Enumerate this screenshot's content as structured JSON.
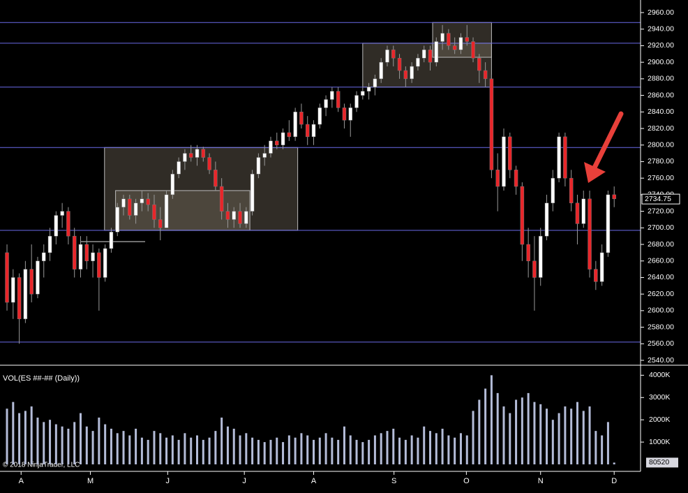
{
  "chart_data": {
    "type": "candlestick",
    "copyright": "© 2018 NinjaTrader, LLC",
    "volume_title": "VOL(ES ##-## (Daily))",
    "last_price": 2734.75,
    "last_price_label": "2734.75",
    "last_volume_label": "80520",
    "up_color": "#ffffff",
    "down_color": "#e8262a",
    "volume_color": "#b4bcd8",
    "open": [
      2670,
      2610,
      2640,
      2590,
      2650,
      2620,
      2660,
      2670,
      2690,
      2715,
      2720,
      2690,
      2650,
      2680,
      2660,
      2670,
      2640,
      2675,
      2695,
      2725,
      2735,
      2715,
      2730,
      2735,
      2728,
      2710,
      2700,
      2740,
      2765,
      2780,
      2790,
      2785,
      2795,
      2785,
      2770,
      2750,
      2720,
      2710,
      2720,
      2705,
      2720,
      2765,
      2785,
      2790,
      2805,
      2800,
      2815,
      2810,
      2840,
      2825,
      2810,
      2825,
      2845,
      2855,
      2865,
      2845,
      2830,
      2845,
      2860,
      2865,
      2870,
      2880,
      2900,
      2915,
      2905,
      2890,
      2880,
      2895,
      2905,
      2915,
      2900,
      2925,
      2935,
      2920,
      2915,
      2930,
      2925,
      2905,
      2890,
      2880,
      2770,
      2750,
      2810,
      2770,
      2750,
      2680,
      2660,
      2640,
      2690,
      2730,
      2760,
      2810,
      2760,
      2730,
      2705,
      2735,
      2650,
      2635,
      2670,
      2740
    ],
    "high": [
      2680,
      2650,
      2645,
      2660,
      2680,
      2665,
      2680,
      2700,
      2720,
      2730,
      2725,
      2700,
      2690,
      2690,
      2680,
      2675,
      2680,
      2700,
      2730,
      2740,
      2740,
      2735,
      2745,
      2742,
      2740,
      2725,
      2745,
      2770,
      2785,
      2795,
      2800,
      2800,
      2798,
      2790,
      2780,
      2760,
      2730,
      2725,
      2730,
      2725,
      2770,
      2790,
      2800,
      2810,
      2815,
      2820,
      2830,
      2845,
      2850,
      2835,
      2830,
      2850,
      2860,
      2870,
      2870,
      2850,
      2850,
      2865,
      2870,
      2875,
      2885,
      2905,
      2920,
      2920,
      2910,
      2895,
      2900,
      2910,
      2920,
      2920,
      2930,
      2945,
      2940,
      2930,
      2935,
      2945,
      2930,
      2910,
      2900,
      2885,
      2790,
      2820,
      2815,
      2775,
      2755,
      2700,
      2690,
      2700,
      2740,
      2770,
      2815,
      2815,
      2770,
      2740,
      2745,
      2745,
      2660,
      2680,
      2745,
      2750
    ],
    "low": [
      2600,
      2590,
      2560,
      2585,
      2610,
      2615,
      2640,
      2660,
      2680,
      2700,
      2680,
      2640,
      2640,
      2650,
      2640,
      2600,
      2635,
      2670,
      2690,
      2715,
      2710,
      2705,
      2720,
      2720,
      2700,
      2685,
      2700,
      2735,
      2760,
      2770,
      2780,
      2775,
      2780,
      2765,
      2745,
      2710,
      2700,
      2700,
      2700,
      2700,
      2715,
      2760,
      2775,
      2785,
      2795,
      2795,
      2805,
      2805,
      2820,
      2800,
      2800,
      2820,
      2835,
      2845,
      2840,
      2820,
      2810,
      2840,
      2855,
      2855,
      2860,
      2875,
      2895,
      2895,
      2880,
      2870,
      2875,
      2890,
      2900,
      2890,
      2895,
      2915,
      2915,
      2910,
      2910,
      2920,
      2900,
      2875,
      2870,
      2760,
      2720,
      2745,
      2760,
      2740,
      2660,
      2640,
      2600,
      2630,
      2685,
      2720,
      2755,
      2750,
      2720,
      2680,
      2700,
      2640,
      2625,
      2630,
      2665,
      2725
    ],
    "close": [
      2610,
      2640,
      2590,
      2650,
      2620,
      2660,
      2670,
      2690,
      2715,
      2720,
      2690,
      2650,
      2680,
      2660,
      2670,
      2640,
      2675,
      2695,
      2725,
      2735,
      2715,
      2730,
      2735,
      2728,
      2710,
      2700,
      2740,
      2765,
      2780,
      2790,
      2785,
      2795,
      2785,
      2770,
      2750,
      2720,
      2710,
      2720,
      2705,
      2720,
      2765,
      2785,
      2790,
      2805,
      2800,
      2815,
      2810,
      2840,
      2825,
      2810,
      2825,
      2845,
      2855,
      2865,
      2845,
      2830,
      2845,
      2860,
      2865,
      2870,
      2880,
      2900,
      2915,
      2905,
      2890,
      2880,
      2895,
      2905,
      2915,
      2900,
      2925,
      2935,
      2920,
      2915,
      2930,
      2925,
      2905,
      2890,
      2880,
      2770,
      2750,
      2810,
      2770,
      2750,
      2680,
      2660,
      2640,
      2690,
      2730,
      2760,
      2810,
      2760,
      2730,
      2705,
      2735,
      2650,
      2635,
      2670,
      2740,
      2735
    ],
    "volume": [
      2500000,
      2800000,
      2300000,
      2400000,
      2600000,
      2100000,
      1900000,
      2000000,
      1800000,
      1700000,
      1600000,
      1900000,
      2300000,
      1700000,
      1500000,
      2100000,
      1800000,
      1600000,
      1400000,
      1500000,
      1300000,
      1600000,
      1200000,
      1100000,
      1500000,
      1400000,
      1200000,
      1300000,
      1100000,
      1400000,
      1200000,
      1300000,
      1100000,
      1200000,
      1500000,
      2100000,
      1700000,
      1600000,
      1300000,
      1400000,
      1200000,
      1100000,
      1000000,
      1100000,
      1200000,
      1000000,
      1300000,
      1200000,
      1400000,
      1300000,
      1100000,
      1200000,
      1400000,
      1200000,
      1100000,
      1700000,
      1300000,
      1100000,
      1000000,
      1100000,
      1300000,
      1400000,
      1500000,
      1600000,
      1200000,
      1100000,
      1300000,
      1200000,
      1700000,
      1500000,
      1400000,
      1600000,
      1300000,
      1200000,
      1400000,
      1300000,
      2400000,
      2900000,
      3400000,
      4000000,
      3200000,
      2600000,
      2300000,
      2900000,
      3000000,
      3200000,
      2800000,
      2700000,
      2500000,
      2000000,
      2300000,
      2600000,
      2500000,
      2800000,
      2400000,
      2600000,
      1500000,
      1300000,
      1900000,
      80520
    ],
    "xlim": [
      -1.14,
      103.3
    ],
    "ylim": [
      2540,
      2960
    ],
    "vlim": [
      0,
      4450000
    ],
    "xticks": [
      {
        "value": 2.3,
        "label": "A"
      },
      {
        "value": 13.6,
        "label": "M"
      },
      {
        "value": 26.2,
        "label": "J"
      },
      {
        "value": 38.7,
        "label": "J"
      },
      {
        "value": 50,
        "label": "A"
      },
      {
        "value": 63.1,
        "label": "S"
      },
      {
        "value": 74.9,
        "label": "O"
      },
      {
        "value": 87,
        "label": "N"
      },
      {
        "value": 99,
        "label": "D"
      }
    ],
    "yticks": [
      {
        "value": 2540,
        "label": "2540.00"
      },
      {
        "value": 2560,
        "label": "2560.00"
      },
      {
        "value": 2580,
        "label": "2580.00"
      },
      {
        "value": 2600,
        "label": "2600.00"
      },
      {
        "value": 2620,
        "label": "2620.00"
      },
      {
        "value": 2640,
        "label": "2640.00"
      },
      {
        "value": 2660,
        "label": "2660.00"
      },
      {
        "value": 2680,
        "label": "2680.00"
      },
      {
        "value": 2700,
        "label": "2700.00"
      },
      {
        "value": 2720,
        "label": "2720.00"
      },
      {
        "value": 2740,
        "label": "2740.00"
      },
      {
        "value": 2760,
        "label": "2760.00"
      },
      {
        "value": 2780,
        "label": "2780.00"
      },
      {
        "value": 2800,
        "label": "2800.00"
      },
      {
        "value": 2820,
        "label": "2820.00"
      },
      {
        "value": 2840,
        "label": "2840.00"
      },
      {
        "value": 2860,
        "label": "2860.00"
      },
      {
        "value": 2880,
        "label": "2880.00"
      },
      {
        "value": 2900,
        "label": "2900.00"
      },
      {
        "value": 2920,
        "label": "2920.00"
      },
      {
        "value": 2940,
        "label": "2940.00"
      },
      {
        "value": 2960,
        "label": "2960.00"
      }
    ],
    "vticks": [
      {
        "value": 1000000,
        "label": "1000K"
      },
      {
        "value": 2000000,
        "label": "2000K"
      },
      {
        "value": 3000000,
        "label": "3000K"
      },
      {
        "value": 4000000,
        "label": "4000K"
      }
    ],
    "levels": [
      2948,
      2923,
      2870,
      2797,
      2697,
      2562
    ],
    "level_color": "#6a6ae8",
    "zones": [
      {
        "x0": 15.9,
        "x1": 47.4,
        "y0": 2697,
        "y1": 2797
      },
      {
        "x0": 17.7,
        "x1": 39.6,
        "y0": 2697,
        "y1": 2745
      },
      {
        "x0": 58,
        "x1": 79,
        "y0": 2870,
        "y1": 2923
      },
      {
        "x0": 69.4,
        "x1": 79,
        "y0": 2906,
        "y1": 2948
      }
    ]
  }
}
